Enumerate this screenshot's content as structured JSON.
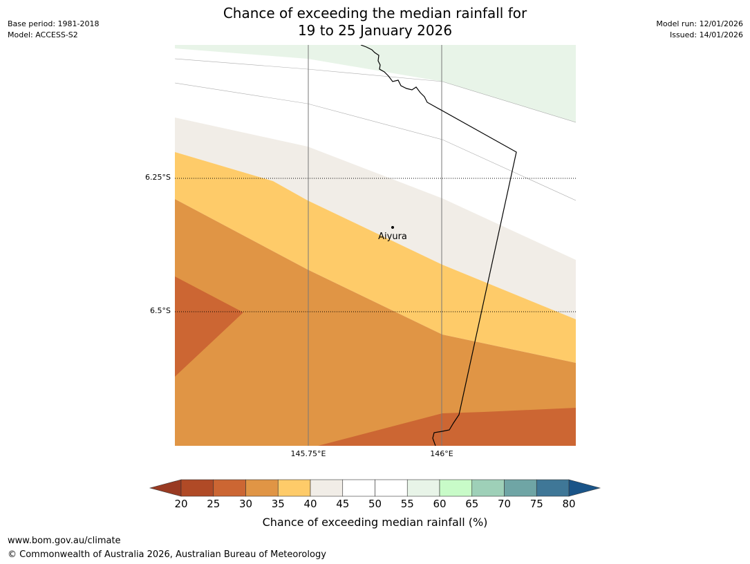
{
  "header": {
    "title_line1": "Chance of exceeding the median rainfall for",
    "title_line2": "19 to 25 January 2026",
    "base_period": "Base period: 1981-2018",
    "model": "Model: ACCESS-S2",
    "model_run": "Model run: 12/01/2026",
    "issued": "Issued: 14/01/2026"
  },
  "map": {
    "lat_labels": [
      "6.25°S",
      "6.5°S"
    ],
    "lon_labels": [
      "145.75°E",
      "146°E"
    ],
    "place": {
      "name": "Aiyura"
    }
  },
  "colorbar": {
    "label": "Chance of exceeding median rainfall (%)",
    "ticks": [
      "20",
      "25",
      "30",
      "35",
      "40",
      "45",
      "50",
      "55",
      "60",
      "65",
      "70",
      "75",
      "80"
    ],
    "colors": [
      "#b04a26",
      "#cc6633",
      "#e09545",
      "#fecb69",
      "#f1ede7",
      "#ffffff",
      "#ffffff",
      "#e8f4e8",
      "#c8fbc8",
      "#9ed0b8",
      "#6fa5a5",
      "#3f7797"
    ],
    "low_extension_color": "#993a22",
    "high_extension_color": "#1a5488"
  },
  "footer": {
    "url": "www.bom.gov.au/climate",
    "copyright": "© Commonwealth of Australia 2026, Australian Bureau of Meteorology"
  }
}
